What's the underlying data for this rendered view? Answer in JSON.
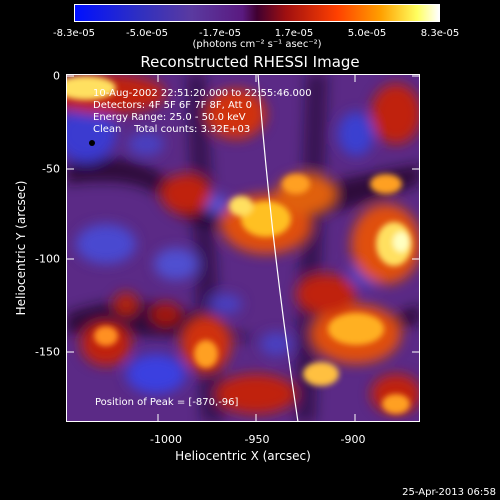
{
  "colorbar": {
    "ticks": [
      "-8.3e-05",
      "-5.0e-05",
      "-1.7e-05",
      "1.7e-05",
      "5.0e-05",
      "8.3e-05"
    ],
    "units": "(photons cm⁻² s⁻¹ asec⁻²)"
  },
  "title": "Reconstructed RHESSI Image",
  "annotations": {
    "time": "10-Aug-2002 22:51:20.000 to 22:55:46.000",
    "detectors": "Detectors: 4F 5F 6F 7F 8F, Att 0",
    "energy": "Energy Range: 25.0 - 50.0 keV",
    "method": "Clean    Total counts: 3.32E+03",
    "peak": "Position of Peak = [-870,-96]"
  },
  "axes": {
    "xlabel": "Heliocentric X (arcsec)",
    "ylabel": "Heliocentric Y (arcsec)",
    "x_ticks": [
      "-1000",
      "-950",
      "-900"
    ],
    "y_ticks": [
      "0",
      "-50",
      "-100",
      "-150"
    ]
  },
  "stamp": "25-Apr-2013 06:58"
}
